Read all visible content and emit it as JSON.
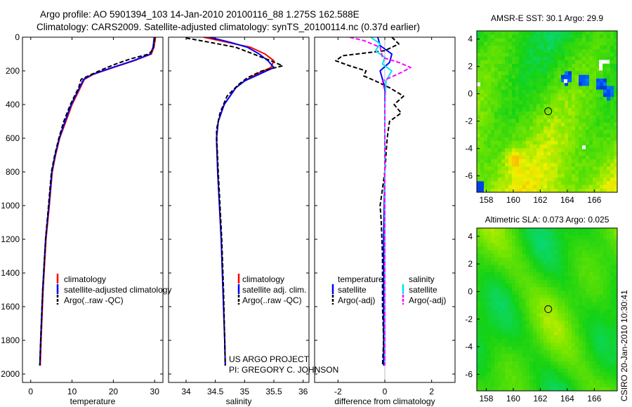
{
  "header": {
    "title_line1": "Argo profile: AO 5901394_103 14-Jan-2010 20100116_88 1.275S 162.588E",
    "title_line2": "Climatology: CARS2009. Satellite-adjusted climatology: synTS_20100114.nc (0.37d earlier)"
  },
  "credit": {
    "line1": "US ARGO PROJECT",
    "line2": "PI: GREGORY C. JOHNSON"
  },
  "side_stamp": "CSIRO 20-Jan-2010 10:30:41",
  "colors": {
    "climatology": "#ff0000",
    "satellite": "#0000ff",
    "argo": "#000000",
    "sat_salinity": "#00e5ee",
    "argo_salinity": "#ff00ff"
  },
  "chart_data": [
    {
      "type": "line",
      "id": "temperature",
      "xlabel": "temperature",
      "ylabel": "",
      "xlim": [
        -2,
        32
      ],
      "ylim": [
        2050,
        0
      ],
      "xticks": [
        0,
        10,
        20,
        30
      ],
      "yticks": [
        0,
        200,
        400,
        600,
        800,
        1000,
        1200,
        1400,
        1600,
        1800,
        2000
      ],
      "legend": [
        "climatology",
        "satellite-adjusted climatology",
        "Argo(..raw -QC)"
      ],
      "legend_placement": "lower-middle",
      "series": [
        {
          "name": "climatology",
          "color": "#ff0000",
          "style": "solid",
          "depth": [
            0,
            20,
            60,
            100,
            140,
            180,
            220,
            250,
            300,
            400,
            500,
            600,
            700,
            800,
            1000,
            1200,
            1500,
            1800,
            1950
          ],
          "values": [
            30.2,
            30.1,
            29.8,
            29.2,
            25.0,
            20.0,
            15.2,
            13.0,
            12.0,
            10.0,
            8.5,
            7.0,
            6.0,
            5.2,
            4.5,
            3.7,
            3.0,
            2.5,
            2.3
          ]
        },
        {
          "name": "satellite-adjusted climatology",
          "color": "#0000ff",
          "style": "solid",
          "depth": [
            0,
            20,
            60,
            100,
            140,
            180,
            220,
            250,
            300,
            400,
            500,
            600,
            700,
            800,
            1000,
            1200,
            1500,
            1800,
            1950
          ],
          "values": [
            29.9,
            29.8,
            29.6,
            29.0,
            24.8,
            19.8,
            15.0,
            12.8,
            11.8,
            9.8,
            8.3,
            6.9,
            5.9,
            5.1,
            4.4,
            3.6,
            2.9,
            2.4,
            2.2
          ]
        },
        {
          "name": "Argo(..raw -QC)",
          "color": "#000000",
          "style": "dashed",
          "depth": [
            5,
            30,
            70,
            100,
            130,
            160,
            190,
            220,
            250,
            300,
            400,
            500,
            600,
            700,
            800,
            1000,
            1200,
            1500,
            1800,
            1950
          ],
          "values": [
            30.0,
            29.9,
            29.7,
            28.6,
            24.0,
            20.5,
            17.5,
            14.8,
            12.2,
            11.6,
            9.6,
            8.0,
            6.8,
            5.8,
            5.0,
            4.3,
            3.6,
            2.9,
            2.4,
            2.2
          ]
        }
      ]
    },
    {
      "type": "line",
      "id": "salinity",
      "xlabel": "salinity",
      "ylabel": "",
      "xlim": [
        33.7,
        36.1
      ],
      "ylim": [
        2050,
        0
      ],
      "xticks": [
        34,
        34.5,
        35,
        35.5,
        36
      ],
      "yticks": [
        0,
        200,
        400,
        600,
        800,
        1000,
        1200,
        1400,
        1600,
        1800,
        2000
      ],
      "legend": [
        "climatology",
        "satellite adj. clim.",
        "Argo(..raw -QC)"
      ],
      "legend_placement": "lower-middle",
      "series": [
        {
          "name": "climatology",
          "color": "#ff0000",
          "style": "solid",
          "depth": [
            0,
            30,
            60,
            100,
            140,
            180,
            220,
            260,
            300,
            400,
            500,
            600,
            800,
            1000,
            1200,
            1500,
            1800,
            1950
          ],
          "values": [
            34.3,
            34.7,
            35.1,
            35.35,
            35.5,
            35.45,
            35.2,
            35.0,
            34.85,
            34.65,
            34.55,
            34.52,
            34.54,
            34.57,
            34.6,
            34.63,
            34.66,
            34.67
          ]
        },
        {
          "name": "satellite adj. clim.",
          "color": "#0000ff",
          "style": "solid",
          "depth": [
            0,
            30,
            60,
            100,
            140,
            180,
            220,
            260,
            300,
            400,
            500,
            600,
            800,
            1000,
            1200,
            1500,
            1800,
            1950
          ],
          "values": [
            34.4,
            34.75,
            35.05,
            35.25,
            35.4,
            35.5,
            35.25,
            35.0,
            34.85,
            34.65,
            34.55,
            34.52,
            34.54,
            34.57,
            34.6,
            34.63,
            34.66,
            34.67
          ]
        },
        {
          "name": "Argo(..raw -QC)",
          "color": "#000000",
          "style": "dashed",
          "depth": [
            5,
            30,
            60,
            100,
            140,
            170,
            200,
            240,
            280,
            350,
            450,
            550,
            650,
            800,
            1000,
            1200,
            1500,
            1800,
            1950
          ],
          "values": [
            34.0,
            34.4,
            34.85,
            35.15,
            35.45,
            35.65,
            35.3,
            35.05,
            34.9,
            34.7,
            34.58,
            34.52,
            34.53,
            34.55,
            34.58,
            34.61,
            34.64,
            34.66,
            34.67
          ]
        }
      ]
    },
    {
      "type": "line",
      "id": "difference",
      "xlabel": "difference from climatology",
      "ylabel": "",
      "xlim": [
        -3,
        3
      ],
      "ylim": [
        2050,
        0
      ],
      "xticks": [
        -2,
        0,
        2
      ],
      "yticks": [
        0,
        200,
        400,
        600,
        800,
        1000,
        1200,
        1400,
        1600,
        1800,
        2000
      ],
      "legend_columns": [
        [
          "temperature",
          "satellite",
          "Argo(-adj)"
        ],
        [
          "salinity",
          "satellite",
          "Argo(-adj)"
        ]
      ],
      "legend_placement": "lower-middle",
      "series": [
        {
          "name": "temperature satellite",
          "color": "#0000ff",
          "style": "solid",
          "depth": [
            0,
            50,
            100,
            150,
            200,
            250,
            300,
            500,
            800,
            1200,
            1600,
            1950
          ],
          "values": [
            -0.3,
            -0.2,
            0.3,
            0.2,
            -0.2,
            -0.1,
            0.0,
            0.0,
            0.0,
            -0.05,
            -0.05,
            -0.05
          ]
        },
        {
          "name": "temperature Argo(-adj)",
          "color": "#000000",
          "style": "dashed",
          "depth": [
            0,
            40,
            80,
            110,
            140,
            170,
            200,
            230,
            260,
            300,
            350,
            400,
            450,
            500,
            600,
            800,
            1000,
            1100,
            1300,
            1600,
            1800,
            1950
          ],
          "values": [
            0.3,
            0.6,
            0.0,
            -1.8,
            -2.1,
            -1.5,
            -0.8,
            -0.9,
            -0.4,
            0.2,
            0.8,
            0.4,
            0.7,
            0.2,
            0.1,
            0.0,
            -0.2,
            -0.15,
            -0.1,
            -0.1,
            -0.05,
            -0.1
          ]
        },
        {
          "name": "salinity satellite",
          "color": "#00e5ee",
          "style": "solid",
          "depth": [
            0,
            40,
            80,
            120,
            160,
            200,
            260,
            400,
            600,
            800,
            1000,
            1300,
            1600,
            1950
          ],
          "values": [
            -0.6,
            -0.2,
            -0.4,
            0.0,
            -0.1,
            0.3,
            0.05,
            0.0,
            0.0,
            0.0,
            0.0,
            0.0,
            0.0,
            0.0
          ]
        },
        {
          "name": "salinity Argo(-adj)",
          "color": "#ff00ff",
          "style": "dashed",
          "depth": [
            0,
            20,
            60,
            120,
            150,
            180,
            210,
            260,
            320,
            450,
            800,
            1200,
            1600,
            1950
          ],
          "values": [
            -1.5,
            -0.9,
            -0.2,
            -0.1,
            0.6,
            1.1,
            0.7,
            -0.1,
            0.0,
            0.0,
            0.0,
            0.0,
            0.0,
            0.0
          ]
        }
      ]
    },
    {
      "type": "heatmap",
      "id": "sst_map",
      "title": "AMSR-E SST: 30.1 Argo: 29.9",
      "xlim": [
        157.3,
        167.7
      ],
      "ylim": [
        -7.2,
        4.6
      ],
      "xticks": [
        158,
        160,
        162,
        164,
        166
      ],
      "yticks": [
        4,
        2,
        0,
        -2,
        -4,
        -6
      ],
      "marker": {
        "lon": 162.588,
        "lat": -1.275
      }
    },
    {
      "type": "heatmap",
      "id": "sla_map",
      "title": "Altimetric SLA: 0.073 Argo: 0.025",
      "xlim": [
        157.3,
        167.7
      ],
      "ylim": [
        -7.2,
        4.6
      ],
      "xticks": [
        158,
        160,
        162,
        164,
        166
      ],
      "yticks": [
        4,
        2,
        0,
        -2,
        -4,
        -6
      ],
      "marker": {
        "lon": 162.588,
        "lat": -1.275
      }
    }
  ]
}
